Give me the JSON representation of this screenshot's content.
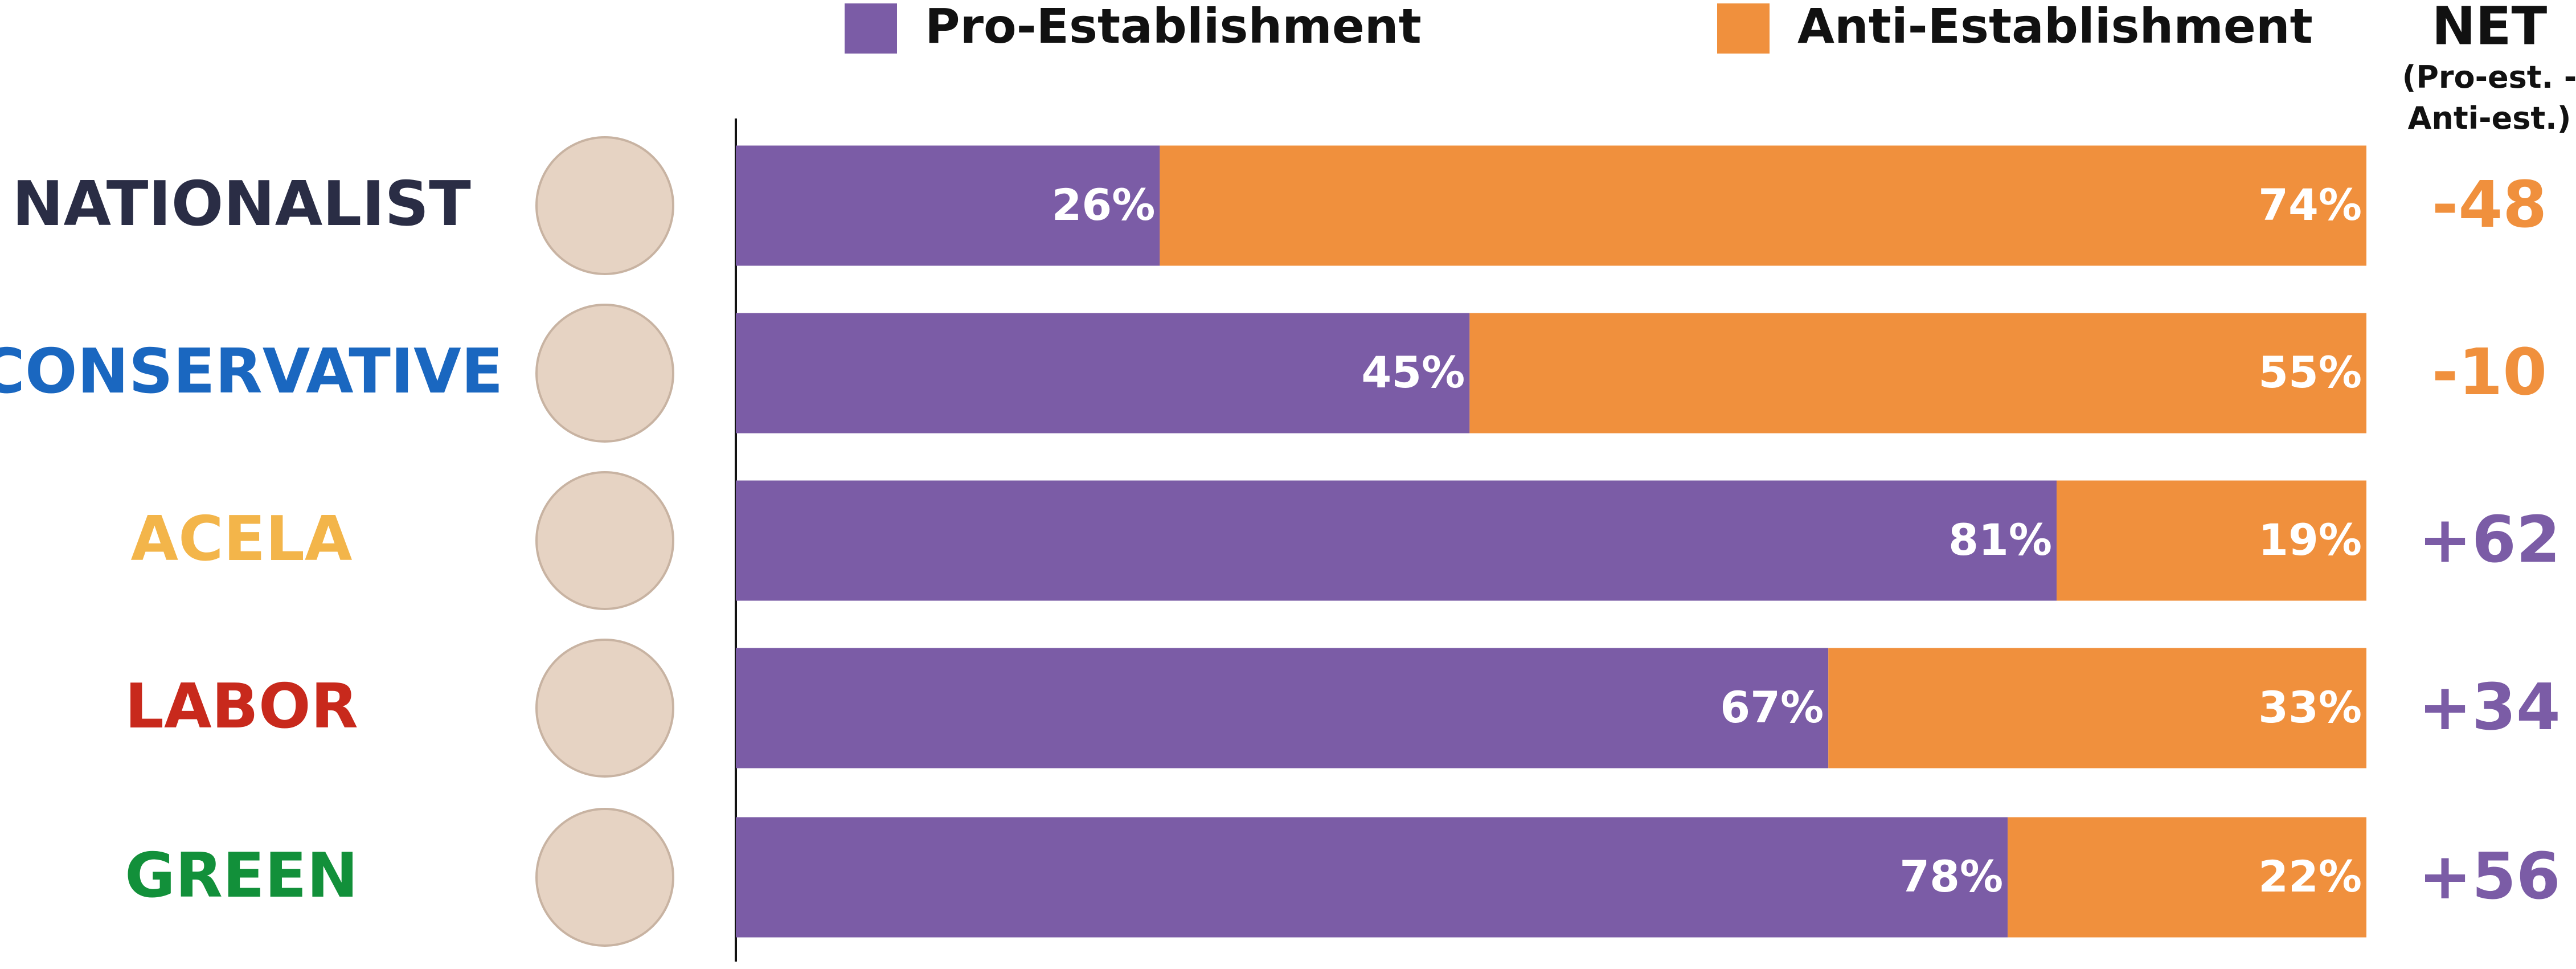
{
  "chart_data": {
    "type": "stacked-bar-horizontal",
    "categories": [
      "NATIONALIST",
      "CONSERVATIVE",
      "ACELA",
      "LABOR",
      "GREEN"
    ],
    "category_colors": [
      "#2a2d45",
      "#1a67c0",
      "#f3b54a",
      "#c8291c",
      "#12903a"
    ],
    "series": [
      {
        "name": "Pro-Establishment",
        "color": "#7b5ca6",
        "values": [
          26,
          45,
          81,
          67,
          78
        ],
        "value_labels": [
          "26%",
          "45%",
          "81%",
          "67%",
          "78%"
        ]
      },
      {
        "name": "Anti-Establishment",
        "color": "#f0903d",
        "values": [
          74,
          55,
          19,
          33,
          22
        ],
        "value_labels": [
          "74%",
          "55%",
          "19%",
          "33%",
          "22%"
        ]
      }
    ],
    "xlim": [
      0,
      100
    ],
    "net": {
      "title": "NET",
      "subtitle": "(Pro-est. - Anti-est.)",
      "values": [
        -48,
        -10,
        62,
        34,
        56
      ],
      "value_labels": [
        "-48",
        "-10",
        "+62",
        "+34",
        "+56"
      ]
    }
  }
}
